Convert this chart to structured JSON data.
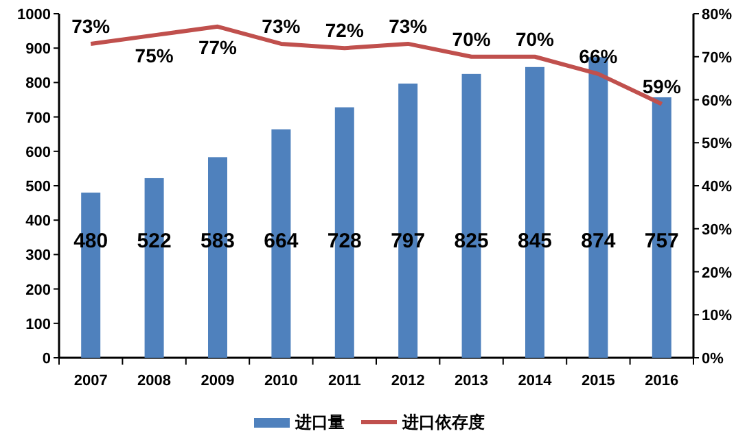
{
  "chart_data": {
    "type": "bar",
    "categories": [
      "2007",
      "2008",
      "2009",
      "2010",
      "2011",
      "2012",
      "2013",
      "2014",
      "2015",
      "2016"
    ],
    "series": [
      {
        "name": "进口量",
        "color": "#4f81bd",
        "values": [
          480,
          522,
          583,
          664,
          728,
          797,
          825,
          845,
          874,
          757
        ]
      },
      {
        "name": "进口依存度",
        "type": "line",
        "axis": "y2",
        "color": "#c0504d",
        "values": [
          73,
          75,
          77,
          73,
          72,
          73,
          70,
          70,
          66,
          59
        ],
        "value_labels": [
          "73%",
          "75%",
          "77%",
          "73%",
          "72%",
          "73%",
          "70%",
          "70%",
          "66%",
          "59%"
        ]
      }
    ],
    "ylim": [
      0,
      1000
    ],
    "yticks": [
      0,
      100,
      200,
      300,
      400,
      500,
      600,
      700,
      800,
      900,
      1000
    ],
    "y2lim": [
      0,
      80
    ],
    "y2ticks": [
      {
        "value": 0,
        "label": "0%"
      },
      {
        "value": 10,
        "label": "10%"
      },
      {
        "value": 20,
        "label": "20%"
      },
      {
        "value": 30,
        "label": "30%"
      },
      {
        "value": 40,
        "label": "40%"
      },
      {
        "value": 50,
        "label": "50%"
      },
      {
        "value": 60,
        "label": "60%"
      },
      {
        "value": 70,
        "label": "70%"
      },
      {
        "value": 80,
        "label": "80%"
      }
    ],
    "data_labels": true,
    "legend": "bottom",
    "grid": false,
    "marker": "none",
    "line_style": "solid"
  }
}
